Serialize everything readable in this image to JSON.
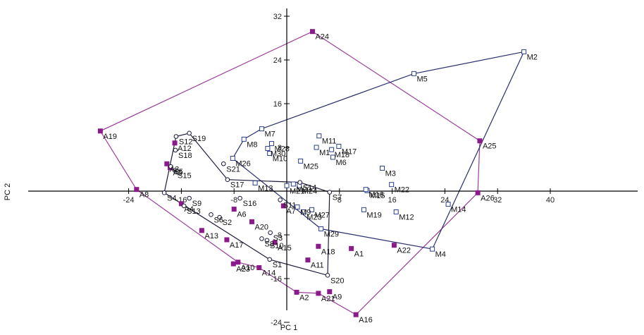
{
  "chart_data": {
    "type": "scatter",
    "title": "",
    "xlabel": "PC 1",
    "ylabel": "PC 2",
    "xlim": [
      -30,
      40
    ],
    "ylim": [
      -28,
      40
    ],
    "x_ticks": [
      {
        "value": -24,
        "label": "-24"
      },
      {
        "value": -16,
        "label": "-16"
      },
      {
        "value": -8,
        "label": "-8"
      },
      {
        "value": 8,
        "label": "8"
      },
      {
        "value": 16,
        "label": "16"
      },
      {
        "value": 24,
        "label": "24"
      },
      {
        "value": 32,
        "label": "32"
      },
      {
        "value": 40,
        "label": "40"
      }
    ],
    "y_ticks": [
      {
        "value": 40,
        "label": "40"
      },
      {
        "value": 32,
        "label": "32"
      },
      {
        "value": 24,
        "label": "24"
      },
      {
        "value": 16,
        "label": "16"
      },
      {
        "value": 8,
        "label": "8"
      },
      {
        "value": -8,
        "label": "-8"
      },
      {
        "value": -16,
        "label": "-16"
      },
      {
        "value": -24,
        "label": "-24"
      }
    ],
    "grid": false,
    "colors": {
      "A": "#8b1a8b",
      "M": "#2a3f8f",
      "S": "#1a1a3a",
      "hull_A": "#9b3d9b",
      "hull_M": "#2a2f6f",
      "hull_S": "#1a1a3a",
      "axis": "#000000"
    },
    "series": [
      {
        "group": "A",
        "marker": "filled-square",
        "points": [
          {
            "label": "A1",
            "x": 9.8,
            "y": -10.5
          },
          {
            "label": "A2",
            "x": 1.5,
            "y": -18.5
          },
          {
            "label": "A3",
            "x": -18.2,
            "y": 5.0
          },
          {
            "label": "A4",
            "x": -16.0,
            "y": -2.3
          },
          {
            "label": "A5",
            "x": -17.7,
            "y": 4.3
          },
          {
            "label": "A6",
            "x": -8.0,
            "y": -3.3
          },
          {
            "label": "A7",
            "x": -0.5,
            "y": -2.7
          },
          {
            "label": "A8",
            "x": -22.8,
            "y": 0.3
          },
          {
            "label": "A9",
            "x": 6.5,
            "y": -18.4
          },
          {
            "label": "A10",
            "x": -7.4,
            "y": -13.0
          },
          {
            "label": "A11",
            "x": 3.2,
            "y": -12.6
          },
          {
            "label": "A12",
            "x": -17.0,
            "y": 8.8
          },
          {
            "label": "A13",
            "x": -12.9,
            "y": -7.2
          },
          {
            "label": "A14",
            "x": -4.2,
            "y": -14.0
          },
          {
            "label": "A15",
            "x": -1.8,
            "y": -9.4
          },
          {
            "label": "A16",
            "x": 10.5,
            "y": -22.6
          },
          {
            "label": "A17",
            "x": -9.1,
            "y": -8.9
          },
          {
            "label": "A18",
            "x": 4.8,
            "y": -10.1
          },
          {
            "label": "A19",
            "x": -28.3,
            "y": 11.0
          },
          {
            "label": "A20",
            "x": -5.3,
            "y": -5.6
          },
          {
            "label": "A21",
            "x": 4.8,
            "y": -18.7
          },
          {
            "label": "A22",
            "x": 16.3,
            "y": -9.9
          },
          {
            "label": "A23",
            "x": -8.1,
            "y": -13.3
          },
          {
            "label": "A24",
            "x": 3.9,
            "y": 29.2
          },
          {
            "label": "A25",
            "x": 29.3,
            "y": 9.2
          },
          {
            "label": "A26",
            "x": 29.0,
            "y": -0.3
          }
        ]
      },
      {
        "group": "M",
        "marker": "open-square",
        "points": [
          {
            "label": "M1",
            "x": 4.5,
            "y": 8.0
          },
          {
            "label": "M2",
            "x": 36.0,
            "y": 25.5
          },
          {
            "label": "M3",
            "x": 14.5,
            "y": 4.2
          },
          {
            "label": "M4",
            "x": 22.1,
            "y": -10.6
          },
          {
            "label": "M5",
            "x": 19.3,
            "y": 21.5
          },
          {
            "label": "M6",
            "x": 7.0,
            "y": 6.2
          },
          {
            "label": "M7",
            "x": -3.8,
            "y": 11.4
          },
          {
            "label": "M8",
            "x": -6.5,
            "y": 9.5
          },
          {
            "label": "M9",
            "x": 1.6,
            "y": -2.9
          },
          {
            "label": "M10",
            "x": -2.6,
            "y": 6.9
          },
          {
            "label": "M11",
            "x": 4.9,
            "y": 10.1
          },
          {
            "label": "M12",
            "x": 16.6,
            "y": -3.8
          },
          {
            "label": "M13",
            "x": -4.8,
            "y": 1.5
          },
          {
            "label": "M14",
            "x": 24.5,
            "y": -2.4
          },
          {
            "label": "M15",
            "x": 12.2,
            "y": 0.1
          },
          {
            "label": "M16",
            "x": 12.0,
            "y": 0.3
          },
          {
            "label": "M17",
            "x": 7.9,
            "y": 8.2
          },
          {
            "label": "M18",
            "x": 6.8,
            "y": 7.6
          },
          {
            "label": "M19",
            "x": 11.7,
            "y": -3.4
          },
          {
            "label": "M20",
            "x": 1.0,
            "y": 1.3
          },
          {
            "label": "M21",
            "x": 0.0,
            "y": 1.0
          },
          {
            "label": "M22",
            "x": 15.9,
            "y": 1.2
          },
          {
            "label": "M23",
            "x": 2.6,
            "y": -3.8
          },
          {
            "label": "M24",
            "x": 1.9,
            "y": 1.0
          },
          {
            "label": "M25",
            "x": 2.1,
            "y": 5.5
          },
          {
            "label": "M26",
            "x": -8.2,
            "y": 6.0
          },
          {
            "label": "M27",
            "x": 3.8,
            "y": -3.4
          },
          {
            "label": "M28",
            "x": -2.3,
            "y": 8.7
          },
          {
            "label": "M29",
            "x": 5.2,
            "y": -6.9
          },
          {
            "label": "M30",
            "x": -2.9,
            "y": 7.8
          }
        ]
      },
      {
        "group": "S",
        "marker": "open-circle",
        "points": [
          {
            "label": "S1",
            "x": -2.6,
            "y": -12.5
          },
          {
            "label": "S2",
            "x": -10.2,
            "y": -4.8
          },
          {
            "label": "S3",
            "x": -2.5,
            "y": -7.6
          },
          {
            "label": "S4",
            "x": -18.6,
            "y": -0.3
          },
          {
            "label": "S5",
            "x": -17.6,
            "y": 4.5
          },
          {
            "label": "S6",
            "x": -11.5,
            "y": -4.3
          },
          {
            "label": "S7",
            "x": 6.5,
            "y": -0.2
          },
          {
            "label": "S8",
            "x": -3.8,
            "y": -8.7
          },
          {
            "label": "S9",
            "x": -14.8,
            "y": -1.3
          },
          {
            "label": "S10",
            "x": -3.0,
            "y": -9.0
          },
          {
            "label": "S11",
            "x": -1.0,
            "y": -1.6
          },
          {
            "label": "S12",
            "x": -16.8,
            "y": 10.0
          },
          {
            "label": "S13",
            "x": -15.6,
            "y": -2.7
          },
          {
            "label": "S14",
            "x": 2.0,
            "y": 1.6
          },
          {
            "label": "S15",
            "x": -17.0,
            "y": 3.8
          },
          {
            "label": "S16",
            "x": -7.1,
            "y": -1.3
          },
          {
            "label": "S17",
            "x": -9.0,
            "y": 2.1
          },
          {
            "label": "S18",
            "x": -16.9,
            "y": 7.5
          },
          {
            "label": "S19",
            "x": -14.8,
            "y": 10.6
          },
          {
            "label": "S20",
            "x": 6.2,
            "y": -15.4
          },
          {
            "label": "S21",
            "x": -9.6,
            "y": 5.0
          }
        ]
      }
    ],
    "hulls": [
      {
        "group": "A",
        "vertices": [
          "A24",
          "A25",
          "A26",
          "A16",
          "A21",
          "A2",
          "A14",
          "A10",
          "A8",
          "A19"
        ]
      },
      {
        "group": "M",
        "vertices": [
          "M2",
          "M4",
          "M29",
          "M26",
          "M8",
          "M7",
          "M5"
        ]
      },
      {
        "group": "S",
        "vertices": [
          "S19",
          "S12",
          "S4",
          "S1",
          "S20",
          "S7",
          "S14",
          "S17",
          "S19"
        ]
      }
    ]
  }
}
